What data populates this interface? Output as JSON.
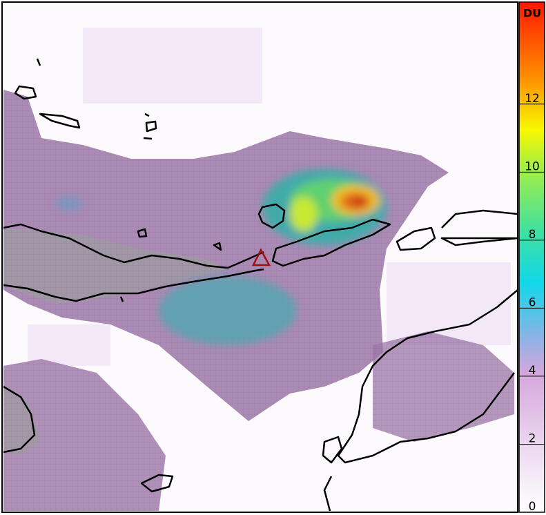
{
  "colorbar": {
    "unit": "DU",
    "range": [
      0,
      15
    ],
    "ticks": [
      0,
      2,
      4,
      6,
      8,
      10,
      12
    ]
  }
}
